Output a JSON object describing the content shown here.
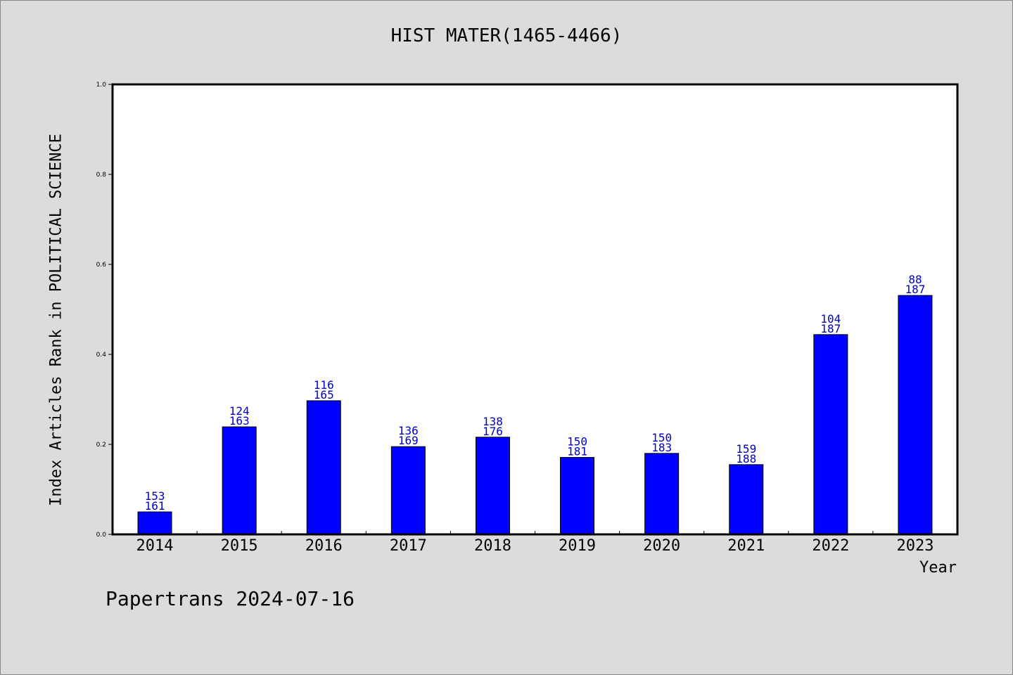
{
  "chart_data": {
    "type": "bar",
    "title": "HIST MATER(1465-4466)",
    "xlabel": "Year",
    "ylabel": "Index Articles Rank in POLITICAL SCIENCE",
    "ylim": [
      0,
      1.0
    ],
    "yticks": [
      "0.0",
      "0.2",
      "0.4",
      "0.6",
      "0.8",
      "1.0"
    ],
    "categories": [
      "2014",
      "2015",
      "2016",
      "2017",
      "2018",
      "2019",
      "2020",
      "2021",
      "2022",
      "2023"
    ],
    "values": [
      0.05,
      0.239,
      0.297,
      0.195,
      0.216,
      0.171,
      0.18,
      0.155,
      0.444,
      0.531
    ],
    "bar_labels": [
      [
        "153",
        "161"
      ],
      [
        "124",
        "163"
      ],
      [
        "116",
        "165"
      ],
      [
        "136",
        "169"
      ],
      [
        "138",
        "176"
      ],
      [
        "150",
        "181"
      ],
      [
        "150",
        "183"
      ],
      [
        "159",
        "188"
      ],
      [
        "104",
        "187"
      ],
      [
        "88",
        "187"
      ]
    ],
    "bar_color": "#0000ff",
    "label_color": "#0000cc",
    "grid": false
  },
  "footer": "Papertrans 2024-07-16"
}
